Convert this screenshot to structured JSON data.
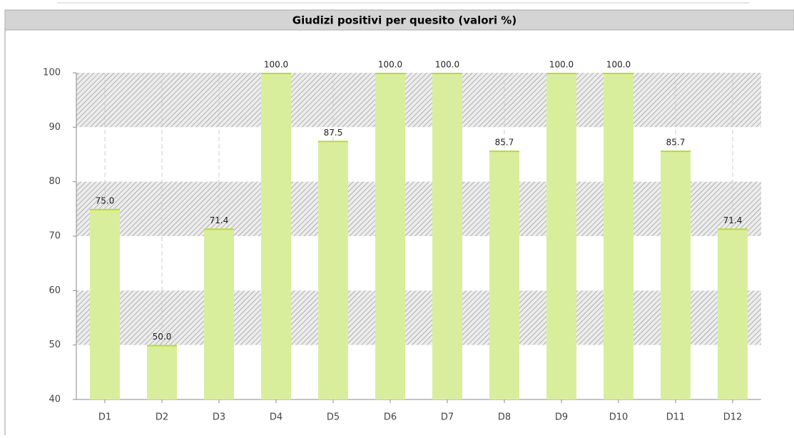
{
  "chart_data": {
    "type": "bar",
    "title": "Giudizi positivi per quesito (valori %)",
    "categories": [
      "D1",
      "D2",
      "D3",
      "D4",
      "D5",
      "D6",
      "D7",
      "D8",
      "D9",
      "D10",
      "D11",
      "D12"
    ],
    "values": [
      75.0,
      50.0,
      71.4,
      100.0,
      87.5,
      100.0,
      100.0,
      85.7,
      100.0,
      100.0,
      85.7,
      71.4
    ],
    "value_labels": [
      "75.0",
      "50.0",
      "71.4",
      "100.0",
      "87.5",
      "100.0",
      "100.0",
      "85.7",
      "100.0",
      "100.0",
      "85.7",
      "71.4"
    ],
    "color": "#d9ee9c",
    "ylim": [
      40,
      100
    ],
    "yticks": [
      40,
      50,
      60,
      70,
      80,
      90,
      100
    ],
    "grid": true
  }
}
